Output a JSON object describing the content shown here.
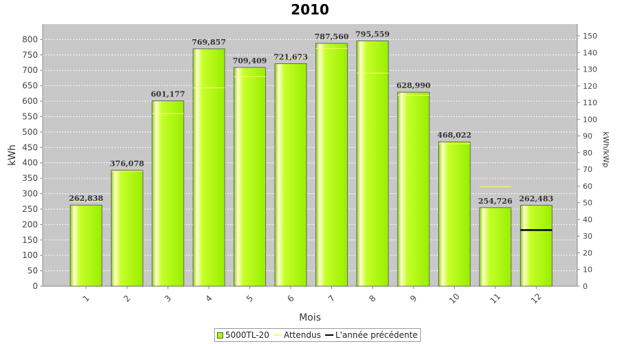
{
  "chart_data": {
    "type": "bar",
    "title": "2010",
    "xlabel": "Mois",
    "ylabel": "kWh",
    "ylabel_right": "kWh/kWp",
    "categories": [
      "1",
      "2",
      "3",
      "4",
      "5",
      "6",
      "7",
      "8",
      "9",
      "10",
      "11",
      "12"
    ],
    "ylim": [
      0,
      850
    ],
    "yticks": [
      0,
      50,
      100,
      150,
      200,
      250,
      300,
      350,
      400,
      450,
      500,
      550,
      600,
      650,
      700,
      750,
      800
    ],
    "ylim_right": [
      0,
      157
    ],
    "yticks_right": [
      0,
      10,
      20,
      30,
      40,
      50,
      60,
      70,
      80,
      90,
      100,
      110,
      120,
      130,
      140,
      150
    ],
    "series": [
      {
        "name": "5000TL-20",
        "kind": "bar",
        "color": "#aaff00",
        "values": [
          262.838,
          376.078,
          601.177,
          769.857,
          709.409,
          721.673,
          787.56,
          795.559,
          628.99,
          468.022,
          254.726,
          262.483
        ],
        "labels": [
          "262,838",
          "376,078",
          "601,177",
          "769,857",
          "709,409",
          "721,673",
          "787,560",
          "795,559",
          "628,990",
          "468,022",
          "254,726",
          "262,483"
        ]
      },
      {
        "name": "Attendus",
        "kind": "marker",
        "color": "#ffff66",
        "values": [
          275,
          373,
          560,
          643,
          680,
          739,
          771,
          691,
          619,
          462,
          323,
          null
        ]
      },
      {
        "name": "L'année précédente",
        "kind": "marker",
        "color": "#000000",
        "values": [
          null,
          null,
          null,
          null,
          null,
          null,
          null,
          null,
          null,
          null,
          null,
          182
        ]
      }
    ],
    "grid": true,
    "legend_position": "bottom",
    "background": "#c8c8c8"
  }
}
